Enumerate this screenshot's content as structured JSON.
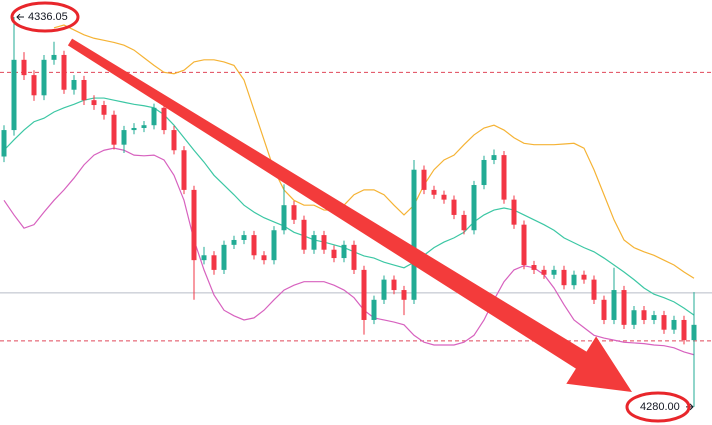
{
  "chart_data": {
    "type": "candlestick",
    "ylim": [
      4277.4,
      4338.5
    ],
    "up_color": "#22ab94",
    "down_color": "#f23645",
    "open": [
      4316.0,
      4319.8,
      4329.9,
      4327.7,
      4324.8,
      4329.9,
      4330.6,
      4325.6,
      4327.0,
      4324.1,
      4323.4,
      4322.0,
      4317.7,
      4319.8,
      4320.1,
      4320.5,
      4323.0,
      4319.8,
      4316.9,
      4311.2,
      4301.1,
      4301.8,
      4299.7,
      4303.3,
      4304.0,
      4304.7,
      4301.8,
      4301.1,
      4305.4,
      4309.0,
      4306.9,
      4302.6,
      4304.7,
      4302.6,
      4301.4,
      4303.3,
      4299.7,
      4292.5,
      4295.4,
      4298.3,
      4296.8,
      4295.4,
      4314.1,
      4311.2,
      4310.5,
      4309.8,
      4307.6,
      4305.4,
      4311.9,
      4315.5,
      4316.2,
      4309.8,
      4306.2,
      4300.4,
      4299.7,
      4299.0,
      4299.7,
      4297.5,
      4299.0,
      4298.3,
      4295.4,
      4292.5,
      4296.8,
      4291.8,
      4293.9,
      4292.5,
      4293.2,
      4291.1,
      4292.5,
      4289.6
    ],
    "high": [
      4320.5,
      4336.05,
      4331.0,
      4328.4,
      4330.6,
      4332.5,
      4331.2,
      4327.7,
      4327.6,
      4324.8,
      4324.0,
      4322.6,
      4320.4,
      4320.8,
      4321.1,
      4323.6,
      4323.6,
      4320.4,
      4317.5,
      4311.8,
      4303.0,
      4302.4,
      4303.9,
      4304.6,
      4305.3,
      4305.3,
      4302.4,
      4306.0,
      4312.0,
      4309.6,
      4307.5,
      4305.3,
      4305.3,
      4303.2,
      4303.9,
      4303.9,
      4300.3,
      4296.0,
      4298.9,
      4298.9,
      4297.4,
      4315.5,
      4314.7,
      4311.8,
      4311.1,
      4310.4,
      4308.2,
      4312.5,
      4316.1,
      4317.0,
      4316.8,
      4310.4,
      4306.8,
      4301.0,
      4300.3,
      4300.3,
      4300.3,
      4299.6,
      4299.6,
      4298.9,
      4296.0,
      4300.0,
      4297.4,
      4294.5,
      4294.5,
      4293.8,
      4293.8,
      4293.1,
      4293.1,
      4296.5
    ],
    "low": [
      4315.2,
      4319.0,
      4327.0,
      4324.0,
      4324.1,
      4329.2,
      4325.0,
      4324.9,
      4323.4,
      4322.7,
      4321.3,
      4317.0,
      4316.5,
      4319.2,
      4319.5,
      4319.9,
      4319.2,
      4316.3,
      4310.6,
      4295.4,
      4300.5,
      4299.0,
      4299.1,
      4302.7,
      4303.4,
      4301.2,
      4300.5,
      4300.5,
      4304.8,
      4306.3,
      4302.0,
      4302.0,
      4302.0,
      4300.8,
      4300.8,
      4299.1,
      4290.4,
      4291.9,
      4294.8,
      4296.2,
      4293.2,
      4294.8,
      4310.6,
      4309.9,
      4309.2,
      4307.0,
      4304.8,
      4304.8,
      4311.3,
      4314.9,
      4309.2,
      4305.6,
      4299.8,
      4299.1,
      4298.4,
      4298.4,
      4296.9,
      4296.9,
      4297.7,
      4294.8,
      4291.9,
      4291.9,
      4291.2,
      4291.2,
      4291.9,
      4291.9,
      4290.5,
      4290.5,
      4289.0,
      4280.0
    ],
    "close": [
      4319.8,
      4329.9,
      4327.7,
      4324.8,
      4329.9,
      4330.6,
      4325.6,
      4327.0,
      4324.1,
      4323.4,
      4322.0,
      4317.7,
      4319.8,
      4320.1,
      4320.5,
      4323.0,
      4319.8,
      4316.9,
      4311.2,
      4301.1,
      4301.8,
      4299.7,
      4303.3,
      4304.0,
      4304.7,
      4301.8,
      4301.1,
      4305.4,
      4309.0,
      4306.9,
      4302.6,
      4304.7,
      4302.6,
      4301.4,
      4303.3,
      4299.7,
      4292.5,
      4295.4,
      4298.3,
      4296.8,
      4295.4,
      4314.1,
      4311.2,
      4310.5,
      4309.8,
      4307.6,
      4305.4,
      4311.9,
      4315.5,
      4316.2,
      4309.8,
      4306.2,
      4300.4,
      4299.7,
      4299.0,
      4299.7,
      4297.5,
      4299.0,
      4298.3,
      4295.4,
      4292.5,
      4296.8,
      4291.8,
      4293.9,
      4292.5,
      4293.2,
      4291.1,
      4292.5,
      4289.6,
      4291.8
    ],
    "bands": [
      {
        "color": "#f5b335",
        "values": [
          null,
          null,
          null,
          null,
          null,
          4334.5,
          4334.9,
          4334.2,
          4333.5,
          4333.0,
          4332.7,
          4332.4,
          4332.0,
          4331.3,
          4330.2,
          4329.1,
          4328.1,
          4327.9,
          4328.4,
          4329.6,
          4329.9,
          4329.9,
          4329.6,
          4329.1,
          4327.0,
          4322.7,
          4318.4,
          4314.1,
          4311.2,
          4309.7,
          4309.0,
          4309.0,
          4308.3,
          4308.3,
          4309.0,
          4310.5,
          4311.2,
          4311.2,
          4310.5,
          4309.0,
          4307.6,
          4309.0,
          4311.9,
          4314.1,
          4315.5,
          4316.2,
          4317.7,
          4319.1,
          4320.1,
          4320.5,
          4319.8,
          4318.7,
          4317.9,
          4317.7,
          4317.7,
          4317.7,
          4317.8,
          4317.9,
          4317.2,
          4314.1,
          4310.5,
          4306.9,
          4304.0,
          4302.9,
          4302.3,
          4301.8,
          4301.1,
          4300.4,
          4299.4,
          4298.5
        ]
      },
      {
        "color": "#3cc7a4",
        "values": [
          4316.9,
          4318.4,
          4319.8,
          4321.0,
          4321.5,
          4322.4,
          4323.0,
          4323.5,
          4324.1,
          4324.4,
          4324.4,
          4324.1,
          4323.8,
          4323.5,
          4323.3,
          4323.0,
          4322.0,
          4320.5,
          4318.7,
          4316.9,
          4315.2,
          4313.3,
          4311.9,
          4310.5,
          4309.0,
          4308.0,
          4307.2,
          4306.6,
          4306.0,
          4305.1,
          4304.6,
          4304.0,
          4303.7,
          4303.3,
          4302.9,
          4302.3,
          4301.7,
          4301.4,
          4300.8,
          4300.4,
          4300.0,
          4300.8,
          4301.8,
          4302.9,
          4303.7,
          4304.3,
          4305.1,
          4306.6,
          4307.6,
          4308.3,
          4308.6,
          4308.3,
          4307.6,
          4306.9,
          4306.2,
          4305.4,
          4304.3,
          4303.6,
          4302.9,
          4302.3,
          4301.4,
          4300.4,
          4299.4,
          4298.3,
          4297.1,
          4296.2,
          4295.7,
          4295.1,
          4294.2,
          4293.2
        ]
      },
      {
        "color": "#d762bf",
        "values": [
          4309.7,
          4307.6,
          4305.7,
          4306.2,
          4308.0,
          4309.7,
          4311.2,
          4312.9,
          4314.8,
          4316.2,
          4316.9,
          4317.2,
          4316.9,
          4316.2,
          4316.1,
          4316.2,
          4315.5,
          4313.3,
          4309.7,
          4304.0,
          4299.7,
          4296.1,
          4293.9,
          4293.1,
          4292.5,
          4292.8,
          4293.9,
          4295.4,
          4296.8,
          4297.5,
          4298.0,
          4298.0,
          4298.0,
          4297.5,
          4296.8,
          4295.7,
          4293.9,
          4292.8,
          4292.5,
          4292.2,
          4291.8,
          4290.3,
          4289.3,
          4288.9,
          4288.9,
          4288.9,
          4289.3,
          4290.3,
          4292.5,
          4295.4,
          4298.0,
          4299.7,
          4300.3,
          4300.0,
          4299.0,
          4297.1,
          4294.7,
          4292.5,
          4291.4,
          4290.3,
          4289.9,
          4289.6,
          4289.3,
          4289.2,
          4289.1,
          4288.9,
          4288.8,
          4288.5,
          4287.9,
          4287.5
        ]
      }
    ],
    "reference_lines": [
      {
        "value": 4328.1,
        "color": "#e0485a",
        "dashed": true
      },
      {
        "value": 4296.4,
        "color": "#b8bcc6",
        "dashed": false
      },
      {
        "value": 4289.5,
        "color": "#e0485a",
        "dashed": true
      }
    ],
    "high_label": 4336.05,
    "low_label": {
      "value": 4280,
      "label": "4280.00"
    }
  }
}
